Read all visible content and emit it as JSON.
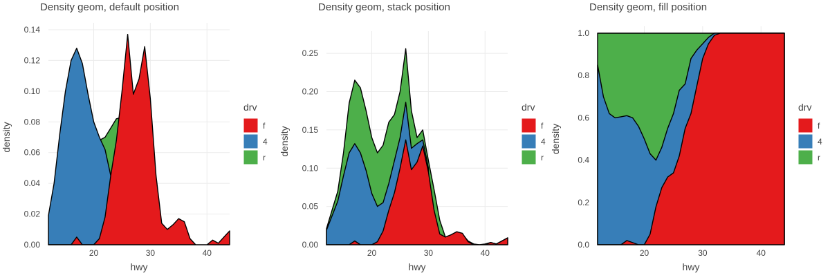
{
  "colors": {
    "f": "#e41a1c",
    "4": "#377eb8",
    "r": "#4daf4a",
    "grid": "#ebebeb",
    "axis": "#333333",
    "outline": "#000000"
  },
  "chart_data": [
    {
      "type": "area",
      "title": "Density geom, default position",
      "xlabel": "hwy",
      "ylabel": "density",
      "x_ticks": [
        20,
        30,
        40
      ],
      "y_ticks": [
        "0.00",
        "0.02",
        "0.04",
        "0.06",
        "0.08",
        "0.10",
        "0.12",
        "0.14"
      ],
      "xlim": [
        12,
        44
      ],
      "ylim": [
        0,
        0.14
      ],
      "legend": {
        "title": "drv",
        "position": "right",
        "items": [
          "f",
          "4",
          "r"
        ]
      },
      "series": [
        {
          "name": "r",
          "x": [
            21,
            22,
            23,
            24,
            25,
            26
          ],
          "y": [
            0.068,
            0.07,
            0.076,
            0.082,
            0.083,
            0.08
          ]
        },
        {
          "name": "4",
          "x": [
            12,
            13,
            14,
            15,
            16,
            17,
            18,
            19,
            20,
            21,
            22,
            23,
            24,
            25,
            26,
            27
          ],
          "y": [
            0.019,
            0.04,
            0.072,
            0.1,
            0.12,
            0.128,
            0.118,
            0.098,
            0.08,
            0.07,
            0.062,
            0.045,
            0.03,
            0.02,
            0.012,
            0.006
          ]
        },
        {
          "name": "f",
          "x": [
            12,
            16,
            17,
            18,
            19,
            20,
            21,
            22,
            23,
            24,
            25,
            26,
            27,
            28,
            29,
            30,
            31,
            32,
            33,
            34,
            35,
            36,
            37,
            38,
            39,
            40,
            41,
            42,
            43,
            44
          ],
          "y": [
            0,
            0,
            0.005,
            0,
            0,
            0,
            0.004,
            0.018,
            0.045,
            0.068,
            0.1,
            0.137,
            0.098,
            0.108,
            0.129,
            0.095,
            0.045,
            0.014,
            0.01,
            0.013,
            0.017,
            0.015,
            0.004,
            0,
            0,
            0,
            0.003,
            0.001,
            0.005,
            0.009
          ]
        }
      ]
    },
    {
      "type": "area",
      "title": "Density geom, stack position",
      "xlabel": "hwy",
      "ylabel": "density",
      "x_ticks": [
        20,
        30,
        40
      ],
      "y_ticks": [
        "0.00",
        "0.05",
        "0.10",
        "0.15",
        "0.20",
        "0.25"
      ],
      "xlim": [
        12,
        44
      ],
      "ylim": [
        0,
        0.27
      ],
      "legend": {
        "title": "drv",
        "position": "right",
        "items": [
          "f",
          "4",
          "r"
        ]
      },
      "series": [
        {
          "name": "r",
          "x": [
            12,
            14,
            15,
            16,
            17,
            18,
            19,
            20,
            21,
            22,
            23,
            24,
            25,
            26,
            27,
            28,
            29,
            30,
            31,
            32,
            33,
            34,
            35,
            36,
            37,
            38,
            39,
            40,
            41,
            42,
            43,
            44
          ],
          "y": [
            0.021,
            0.07,
            0.12,
            0.185,
            0.215,
            0.205,
            0.175,
            0.14,
            0.12,
            0.13,
            0.16,
            0.17,
            0.2,
            0.256,
            0.175,
            0.14,
            0.15,
            0.11,
            0.072,
            0.032,
            0.01,
            0.013,
            0.017,
            0.014,
            0.005,
            0.001,
            0,
            0.001,
            0.003,
            0.001,
            0.005,
            0.009
          ]
        },
        {
          "name": "4",
          "x": [
            12,
            14,
            15,
            16,
            17,
            18,
            19,
            20,
            21,
            22,
            23,
            24,
            25,
            26,
            27,
            28,
            29,
            30
          ],
          "y": [
            0.019,
            0.057,
            0.09,
            0.12,
            0.132,
            0.12,
            0.097,
            0.067,
            0.05,
            0.055,
            0.08,
            0.11,
            0.14,
            0.186,
            0.126,
            0.132,
            0.137,
            0.1
          ]
        },
        {
          "name": "f",
          "x": [
            12,
            16,
            17,
            18,
            19,
            20,
            21,
            22,
            23,
            24,
            25,
            26,
            27,
            28,
            29,
            30,
            31,
            32,
            33,
            34,
            35,
            36,
            37,
            38,
            39,
            40,
            41,
            42,
            43,
            44
          ],
          "y": [
            0,
            0,
            0.005,
            0,
            0,
            0,
            0.004,
            0.018,
            0.045,
            0.068,
            0.1,
            0.137,
            0.098,
            0.108,
            0.129,
            0.095,
            0.045,
            0.014,
            0.01,
            0.013,
            0.017,
            0.015,
            0.004,
            0,
            0,
            0,
            0.003,
            0.001,
            0.005,
            0.009
          ]
        }
      ]
    },
    {
      "type": "area",
      "title": "Density geom, fill position",
      "xlabel": "hwy",
      "ylabel": "density",
      "x_ticks": [
        20,
        30,
        40
      ],
      "y_ticks": [
        "0.0",
        "0.2",
        "0.4",
        "0.6",
        "0.8",
        "1.0"
      ],
      "xlim": [
        12,
        44
      ],
      "ylim": [
        0,
        1.0
      ],
      "legend": {
        "title": "drv",
        "position": "right",
        "items": [
          "f",
          "4",
          "r"
        ]
      },
      "series": [
        {
          "name": "r",
          "x": [
            12,
            44
          ],
          "y": [
            1.0,
            1.0
          ]
        },
        {
          "name": "4",
          "x": [
            12,
            13,
            14,
            15,
            16,
            17,
            18,
            19,
            20,
            21,
            22,
            23,
            24,
            25,
            26,
            27,
            28,
            29,
            30,
            31,
            32,
            33,
            44
          ],
          "y": [
            0.85,
            0.7,
            0.62,
            0.6,
            0.605,
            0.61,
            0.6,
            0.56,
            0.5,
            0.43,
            0.4,
            0.46,
            0.55,
            0.62,
            0.73,
            0.76,
            0.88,
            0.92,
            0.95,
            0.98,
            1.0,
            1.0,
            1.0
          ]
        },
        {
          "name": "f",
          "x": [
            12,
            16,
            17,
            18,
            19,
            20,
            21,
            22,
            23,
            24,
            25,
            26,
            27,
            28,
            29,
            30,
            31,
            32,
            33,
            44
          ],
          "y": [
            0,
            0,
            0.02,
            0.01,
            0,
            0,
            0.05,
            0.18,
            0.27,
            0.32,
            0.34,
            0.42,
            0.55,
            0.62,
            0.75,
            0.88,
            0.95,
            0.99,
            1.0,
            1.0
          ]
        }
      ]
    }
  ]
}
